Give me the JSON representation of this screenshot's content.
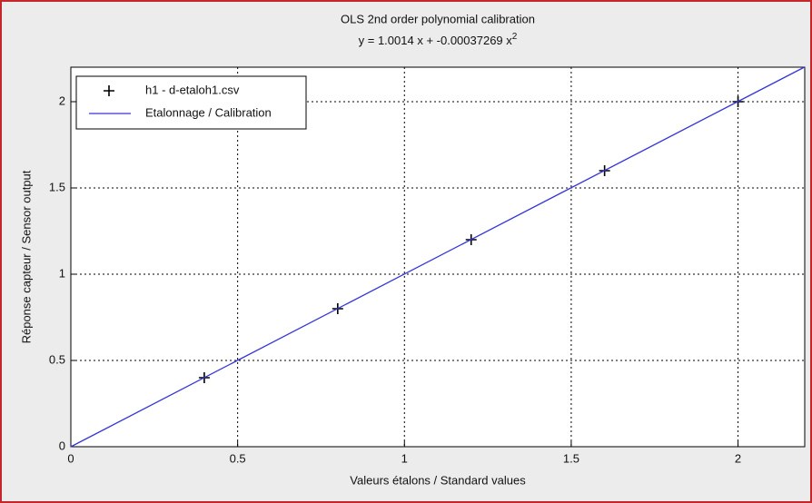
{
  "chart_data": {
    "type": "scatter",
    "title": "OLS 2nd order polynomial calibration",
    "equation": {
      "text": "y = 1.0014 x + -0.00037269 x",
      "superscript": "2"
    },
    "xlabel": "Valeurs étalons / Standard values",
    "ylabel": "Réponse capteur / Sensor output",
    "series": [
      {
        "name": "h1 - d-etaloh1.csv",
        "color": "#000000",
        "marker": "+",
        "x": [
          0.4,
          0.8,
          1.2,
          1.6,
          2
        ],
        "values": [
          0.4,
          0.8,
          1.2,
          1.6,
          2
        ]
      },
      {
        "name": "Etalonnage / Calibration",
        "color": "#3535d8",
        "marker": "line",
        "x": [
          0,
          0.5,
          1,
          1.5,
          2,
          2.2
        ],
        "values": [
          0,
          0.5006,
          1.001,
          1.5013,
          2.0013,
          2.2013
        ]
      }
    ],
    "xlim": [
      0,
      2.2
    ],
    "ylim": [
      0,
      2.2
    ],
    "xticks": [
      0,
      0.5,
      1,
      1.5,
      2
    ],
    "yticks": [
      0,
      0.5,
      1,
      1.5,
      2
    ],
    "grid": true,
    "legend": "upper left"
  }
}
